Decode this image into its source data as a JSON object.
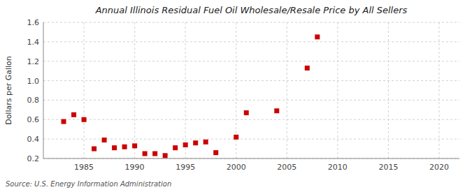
{
  "chart_data": {
    "type": "scatter",
    "title": "Annual Illinois Residual Fuel Oil Wholesale/Resale Price by All Sellers",
    "ylabel": "Dollars per Gallon",
    "source": "Source: U.S. Energy Information Administration",
    "x": [
      1983,
      1984,
      1985,
      1986,
      1987,
      1988,
      1989,
      1990,
      1991,
      1992,
      1993,
      1994,
      1995,
      1996,
      1997,
      1998,
      2000,
      2001,
      2004,
      2007,
      2008
    ],
    "values": [
      0.58,
      0.65,
      0.6,
      0.3,
      0.39,
      0.31,
      0.32,
      0.33,
      0.25,
      0.25,
      0.23,
      0.31,
      0.34,
      0.36,
      0.37,
      0.26,
      0.42,
      0.67,
      0.69,
      1.13,
      1.45
    ],
    "xlim": [
      1981,
      2022
    ],
    "ylim": [
      0.2,
      1.6
    ],
    "xticks": [
      1985,
      1990,
      1995,
      2000,
      2005,
      2010,
      2015,
      2020
    ],
    "yticks": [
      0.2,
      0.4,
      0.6,
      0.8,
      {
        "value": 1.0,
        "label": "1.0"
      },
      1.2,
      1.4,
      1.6
    ],
    "grid": true,
    "color": "#cc0000",
    "marker": "square"
  }
}
